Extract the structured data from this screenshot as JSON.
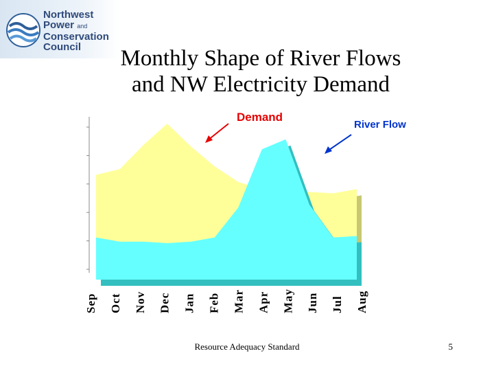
{
  "logo": {
    "line1": "Northwest",
    "line2": "Power",
    "line2_small": "and",
    "line3": "Conservation",
    "line4": "Council"
  },
  "title_line1": "Monthly Shape of River Flows",
  "title_line2": "and NW Electricity Demand",
  "footer": {
    "text": "Resource Adequacy Standard",
    "page_number": "5"
  },
  "colors": {
    "demand_fill": "#ffff99",
    "demand_side": "#c8c873",
    "river_fill": "#66ffff",
    "river_side": "#33bfbf",
    "demand_label": "#e60000",
    "river_label": "#0033cc",
    "axis": "#888888"
  },
  "chart_data": {
    "type": "area",
    "categories": [
      "Sep",
      "Oct",
      "Nov",
      "Dec",
      "Jan",
      "Feb",
      "Mar",
      "Apr",
      "May",
      "Jun",
      "Jul",
      "Aug"
    ],
    "series": [
      {
        "name": "Demand",
        "values": [
          64,
          68,
          85,
          100,
          84,
          70,
          59,
          54,
          52,
          52,
          51,
          54
        ]
      },
      {
        "name": "River Flow",
        "values": [
          20,
          17,
          17,
          16,
          17,
          20,
          41,
          82,
          89,
          43,
          20,
          21
        ]
      }
    ],
    "annotations": [
      "Demand",
      "River Flow"
    ],
    "ylim": [
      0,
      100
    ],
    "grid": false,
    "legend": "none"
  }
}
